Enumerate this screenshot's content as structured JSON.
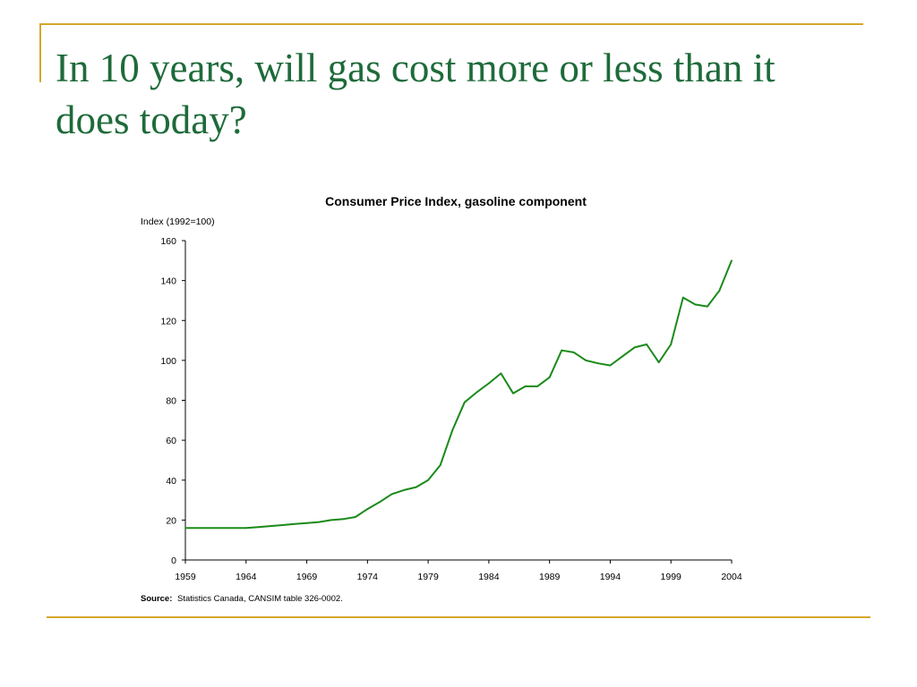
{
  "slide": {
    "title": "In 10 years, will gas cost more or less than it does today?",
    "title_color": "#1e6b3a",
    "accent_color": "#d4a72c"
  },
  "chart_data": {
    "type": "line",
    "title": "Consumer Price Index, gasoline component",
    "xlabel": "",
    "ylabel": "Index (1992=100)",
    "ylim": [
      0,
      160
    ],
    "xlim": [
      1959,
      2004
    ],
    "yticks": [
      "0",
      "20",
      "40",
      "60",
      "80",
      "100",
      "120",
      "140",
      "160"
    ],
    "xticks": [
      "1959",
      "1964",
      "1969",
      "1974",
      "1979",
      "1984",
      "1989",
      "1994",
      "1999",
      "2004"
    ],
    "grid": false,
    "series_color": "#1a8a1a",
    "series": [
      {
        "x": [
          1959,
          1960,
          1961,
          1962,
          1963,
          1964,
          1965,
          1966,
          1967,
          1968,
          1969,
          1970,
          1971,
          1972,
          1973,
          1974,
          1975,
          1976,
          1977,
          1978,
          1979,
          1980,
          1981,
          1982,
          1983,
          1984,
          1985,
          1986,
          1987,
          1988,
          1989,
          1990,
          1991,
          1992,
          1993,
          1994,
          1995,
          1996,
          1997,
          1998,
          1999,
          2000,
          2001,
          2002,
          2003,
          2004
        ],
        "values": [
          16,
          16,
          16,
          16,
          16,
          16,
          16.5,
          17,
          17.5,
          18,
          18.5,
          19,
          20,
          20.5,
          21.5,
          25.5,
          29,
          33,
          35,
          36.5,
          40,
          47.5,
          65,
          79,
          84,
          88.5,
          93.5,
          83.5,
          87,
          87,
          91.5,
          105,
          104,
          100,
          98.5,
          97.5,
          102,
          106.5,
          108,
          99,
          108,
          131.5,
          128,
          127,
          135,
          150
        ]
      }
    ],
    "source_label": "Source:",
    "source_text": "Statistics Canada, CANSIM table 326-0002."
  }
}
